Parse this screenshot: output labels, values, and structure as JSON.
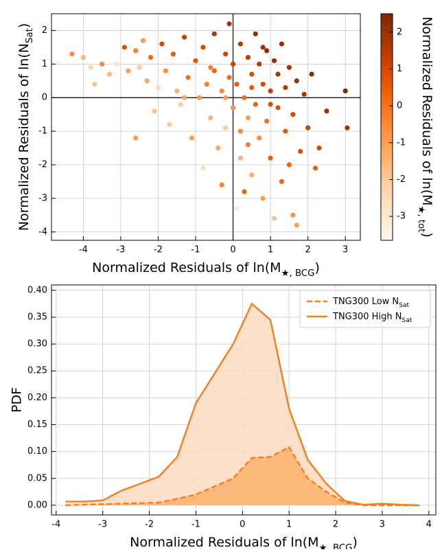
{
  "chart_data": [
    {
      "type": "scatter",
      "x_label": {
        "text": "Normalized Residuals of ln(M",
        "sub": "★, BCG",
        "end": ")"
      },
      "y_label": {
        "text": "Normalized Residuals of ln(N",
        "sub": "Sat",
        "end": ")"
      },
      "colorbar_label": {
        "text": "Normalized Residuals of ln(M",
        "sub": "★, tot",
        "end": ")"
      },
      "x": [
        -4.3,
        -4.0,
        -3.8,
        -3.7,
        -3.5,
        -3.3,
        -3.1,
        -2.9,
        -2.8,
        -2.6,
        -2.5,
        -2.4,
        -2.3,
        -2.2,
        -2.1,
        -2.0,
        -1.9,
        -1.8,
        -1.7,
        -1.6,
        -1.5,
        -1.4,
        -1.3,
        -1.2,
        -1.1,
        -1.0,
        -0.9,
        -0.8,
        -0.8,
        -0.7,
        -0.6,
        -0.5,
        -0.5,
        -0.4,
        -0.3,
        -0.3,
        -0.2,
        -0.2,
        -0.1,
        -0.1,
        0.0,
        0.0,
        0.1,
        0.1,
        0.2,
        0.2,
        0.3,
        0.3,
        0.4,
        0.4,
        0.5,
        0.5,
        0.6,
        0.6,
        0.7,
        0.7,
        0.8,
        0.8,
        0.9,
        0.9,
        1.0,
        1.0,
        1.1,
        1.1,
        1.2,
        1.2,
        1.3,
        1.3,
        1.4,
        1.4,
        1.5,
        1.6,
        1.6,
        1.7,
        1.8,
        1.9,
        2.0,
        2.1,
        2.2,
        2.3,
        2.5,
        3.0,
        3.05,
        -0.2,
        0.5,
        -0.6,
        1.0,
        0.2,
        0.8,
        -1.3,
        0.4,
        1.5,
        -2.6,
        1.7
      ],
      "y": [
        1.3,
        1.2,
        0.9,
        0.4,
        1.0,
        0.7,
        1.0,
        1.5,
        0.8,
        1.4,
        0.9,
        1.7,
        0.5,
        1.2,
        -0.4,
        0.3,
        1.6,
        0.8,
        -0.8,
        1.3,
        0.2,
        -0.2,
        1.8,
        0.6,
        -1.2,
        1.1,
        0.0,
        -2.1,
        1.5,
        0.4,
        -0.6,
        1.9,
        0.8,
        -1.5,
        -2.6,
        0.2,
        1.3,
        -0.9,
        0.6,
        2.2,
        -0.3,
        1.0,
        -3.3,
        0.4,
        1.6,
        -1.8,
        0.0,
        -2.8,
        1.2,
        -0.6,
        0.7,
        -2.3,
        1.9,
        -0.2,
        1.0,
        -1.2,
        0.4,
        -3.0,
        1.4,
        -0.7,
        0.2,
        -1.8,
        1.1,
        -3.6,
        -0.3,
        0.7,
        -2.5,
        1.6,
        0.3,
        -1.0,
        0.9,
        -3.5,
        -0.5,
        0.5,
        -1.6,
        0.1,
        -0.9,
        0.7,
        -2.1,
        -1.5,
        -0.4,
        0.2,
        -0.9,
        0.0,
        0.3,
        0.9,
        -0.2,
        -1.0,
        1.5,
        0.0,
        -1.4,
        -2.0,
        -1.2,
        -3.8
      ],
      "c": [
        -0.5,
        -1.5,
        -2.3,
        -1.8,
        -0.5,
        -1.6,
        -2.8,
        0.8,
        -1.0,
        -0.3,
        -2.0,
        -0.8,
        -1.2,
        0.2,
        -1.8,
        -2.5,
        1.0,
        -0.6,
        -1.9,
        0.5,
        -1.4,
        -2.2,
        1.2,
        0.0,
        -1.0,
        0.7,
        -0.8,
        -2.6,
        1.0,
        -0.2,
        -1.5,
        1.6,
        0.3,
        -1.2,
        -0.4,
        -0.5,
        1.1,
        -2.0,
        0.2,
        1.8,
        -0.7,
        1.2,
        -2.8,
        0.5,
        1.5,
        -1.5,
        0.1,
        0.3,
        1.4,
        -0.9,
        0.9,
        -1.3,
        2.0,
        0.3,
        1.6,
        -0.5,
        1.0,
        -0.8,
        2.2,
        0.0,
        1.3,
        0.5,
        2.1,
        -1.8,
        0.8,
        1.8,
        0.2,
        2.0,
        1.5,
        0.6,
        1.9,
        -0.7,
        1.0,
        2.0,
        0.8,
        1.7,
        1.2,
        2.3,
        0.4,
        1.0,
        2.0,
        2.4,
        1.8,
        -1.0,
        0.5,
        -0.3,
        0.9,
        -0.5,
        1.9,
        -1.2,
        -0.2,
        0.3,
        -0.9,
        -1.0
      ],
      "colormap": "Oranges",
      "xlim": [
        -4.85,
        3.4
      ],
      "ylim": [
        -4.25,
        2.5
      ],
      "clim": [
        -3.65,
        2.5
      ],
      "xticks": [
        -4,
        -3,
        -2,
        -1,
        0,
        1,
        2,
        3
      ],
      "yticks": [
        -4,
        -3,
        -2,
        -1,
        0,
        1,
        2
      ],
      "cticks": [
        -3,
        -2,
        -1,
        0,
        1,
        2
      ],
      "grid": true,
      "zero_lines": true
    },
    {
      "type": "line",
      "x_label": {
        "text": "Normalized Residuals of ln(M",
        "sub": "★, BCG",
        "end": ")"
      },
      "y_label": "PDF",
      "x": [
        -3.8,
        -3.4,
        -3.0,
        -2.6,
        -2.2,
        -1.8,
        -1.4,
        -1.0,
        -0.6,
        -0.2,
        0.2,
        0.6,
        1.0,
        1.4,
        1.8,
        2.2,
        2.6,
        3.0,
        3.4,
        3.8
      ],
      "series": [
        {
          "name": "TNG300 Low N",
          "name_sub": "Sat",
          "color": "#f47d1f",
          "fill": "#fdb06e",
          "dashed": true,
          "values": [
            0.0,
            0.001,
            0.002,
            0.003,
            0.004,
            0.005,
            0.012,
            0.02,
            0.035,
            0.05,
            0.088,
            0.09,
            0.108,
            0.05,
            0.025,
            0.005,
            0.0,
            0.0,
            0.0,
            0.0
          ]
        },
        {
          "name": "TNG300 High N",
          "name_sub": "Sat",
          "color": "#f47d1f",
          "fill": "#fddbc0",
          "dashed": false,
          "values": [
            0.007,
            0.007,
            0.009,
            0.027,
            0.04,
            0.053,
            0.09,
            0.19,
            0.245,
            0.3,
            0.375,
            0.345,
            0.18,
            0.085,
            0.04,
            0.008,
            0.001,
            0.003,
            0.001,
            0.0
          ]
        }
      ],
      "xlim": [
        -4.1,
        4.15
      ],
      "ylim": [
        -0.018,
        0.41
      ],
      "xticks": [
        -4,
        -3,
        -2,
        -1,
        0,
        1,
        2,
        3,
        4
      ],
      "yticks": [
        {
          "value": 0,
          "label": "0.00"
        },
        {
          "value": 0.05,
          "label": "0.05"
        },
        {
          "value": 0.1,
          "label": "0.10"
        },
        {
          "value": 0.15,
          "label": "0.15"
        },
        {
          "value": 0.2,
          "label": "0.20"
        },
        {
          "value": 0.25,
          "label": "0.25"
        },
        {
          "value": 0.3,
          "label": "0.30"
        },
        {
          "value": 0.35,
          "label": "0.35"
        },
        {
          "value": 0.4,
          "label": "0.40"
        }
      ],
      "grid": true,
      "legend": "upper right"
    }
  ]
}
